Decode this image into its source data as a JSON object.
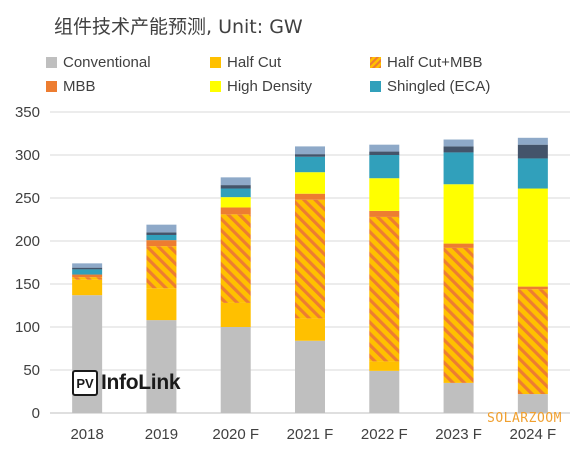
{
  "chart_data": {
    "type": "bar",
    "stacked": true,
    "title": "组件技术产能预测, Unit: GW",
    "categories": [
      "2018",
      "2019",
      "2020 F",
      "2021 F",
      "2022 F",
      "2023 F",
      "2024 F"
    ],
    "series": [
      {
        "name": "Conventional",
        "color": "#bfbfbf",
        "pattern": "solid",
        "values": [
          137,
          108,
          100,
          84,
          49,
          35,
          22
        ]
      },
      {
        "name": "Half Cut",
        "color": "#ffc000",
        "pattern": "solid",
        "values": [
          18,
          37,
          28,
          26,
          11,
          0,
          0
        ]
      },
      {
        "name": "Half Cut+MBB",
        "color": "#ffc000",
        "pattern": "hatch",
        "hatch_color": "#ed7d31",
        "values": [
          3,
          49,
          103,
          138,
          168,
          157,
          122
        ]
      },
      {
        "name": "MBB",
        "color": "#ed7d31",
        "pattern": "solid",
        "values": [
          3,
          7,
          8,
          7,
          7,
          5,
          3
        ]
      },
      {
        "name": "High Density",
        "color": "#ffff00",
        "pattern": "solid",
        "values": [
          0,
          0,
          12,
          25,
          38,
          69,
          114
        ]
      },
      {
        "name": "Shingled (ECA)",
        "color": "#31a0bb",
        "pattern": "solid",
        "values": [
          6,
          6,
          10,
          18,
          27,
          37,
          35
        ]
      },
      {
        "name": "",
        "color": "#44546a",
        "pattern": "solid",
        "values": [
          2,
          3,
          4,
          3,
          4,
          7,
          16
        ]
      },
      {
        "name": "",
        "color": "#8ea9c8",
        "pattern": "solid",
        "values": [
          5,
          9,
          9,
          9,
          8,
          8,
          8
        ]
      }
    ],
    "ylim": [
      0,
      350
    ],
    "yticks": [
      0,
      50,
      100,
      150,
      200,
      250,
      300,
      350
    ],
    "grid": true,
    "legend_position": "top"
  },
  "branding": {
    "logo_mark": "PV",
    "logo_text": "InfoLink",
    "watermark": "SOLARZOOM"
  }
}
